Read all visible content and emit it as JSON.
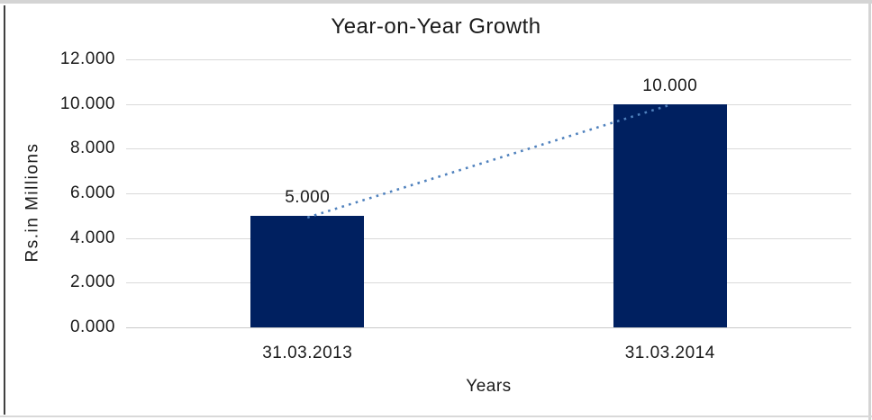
{
  "chart_data": {
    "type": "bar",
    "title": "Year-on-Year Growth",
    "categories": [
      "31.03.2013",
      "31.03.2014"
    ],
    "values": [
      5.0,
      10.0
    ],
    "value_labels": [
      "5.000",
      "10.000"
    ],
    "xlabel": "Years",
    "ylabel": "Rs.in Millions",
    "ylim": [
      0,
      12
    ],
    "ytick_step": 2,
    "ytick_labels": [
      "0.000",
      "2.000",
      "4.000",
      "6.000",
      "8.000",
      "10.000",
      "12.000"
    ],
    "grid": true,
    "legend": "none",
    "bar_color": "#002060",
    "gridline_color": "#d9d9d9",
    "axis_line_color": "#c9c9c9",
    "text_color": "#1a1a1a",
    "trendline": {
      "type": "linear",
      "style": "dotted",
      "color": "#4f81bd"
    }
  },
  "frame": {
    "background": "#ffffff",
    "top_border_color": "#d4d4d4",
    "right_border_color": "#d4d4d4",
    "bottom_border_color": "#d9d9d9",
    "left_border_color": "#404040"
  }
}
